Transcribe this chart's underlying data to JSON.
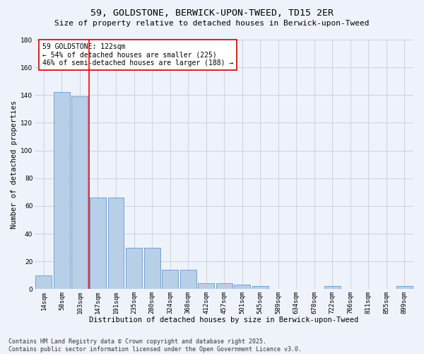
{
  "title_line1": "59, GOLDSTONE, BERWICK-UPON-TWEED, TD15 2ER",
  "title_line2": "Size of property relative to detached houses in Berwick-upon-Tweed",
  "xlabel": "Distribution of detached houses by size in Berwick-upon-Tweed",
  "ylabel": "Number of detached properties",
  "categories": [
    "14sqm",
    "58sqm",
    "103sqm",
    "147sqm",
    "191sqm",
    "235sqm",
    "280sqm",
    "324sqm",
    "368sqm",
    "412sqm",
    "457sqm",
    "501sqm",
    "545sqm",
    "589sqm",
    "634sqm",
    "678sqm",
    "722sqm",
    "766sqm",
    "811sqm",
    "855sqm",
    "899sqm"
  ],
  "values": [
    10,
    142,
    139,
    66,
    66,
    30,
    30,
    14,
    14,
    4,
    4,
    3,
    2,
    0,
    0,
    0,
    2,
    0,
    0,
    0,
    2
  ],
  "bar_color": "#b8cfe8",
  "bar_edge_color": "#6699cc",
  "red_line_x": 2.5,
  "annotation_text": "59 GOLDSTONE: 122sqm\n← 54% of detached houses are smaller (225)\n46% of semi-detached houses are larger (188) →",
  "annotation_box_color": "#ffffff",
  "annotation_box_edge": "#cc0000",
  "ylim": [
    0,
    180
  ],
  "yticks": [
    0,
    20,
    40,
    60,
    80,
    100,
    120,
    140,
    160,
    180
  ],
  "background_color": "#eef2fa",
  "grid_color": "#c8ccd8",
  "footer_line1": "Contains HM Land Registry data © Crown copyright and database right 2025.",
  "footer_line2": "Contains public sector information licensed under the Open Government Licence v3.0.",
  "title_fontsize": 9.5,
  "subtitle_fontsize": 8,
  "axis_label_fontsize": 7.5,
  "tick_fontsize": 6.5,
  "annotation_fontsize": 7,
  "footer_fontsize": 6
}
